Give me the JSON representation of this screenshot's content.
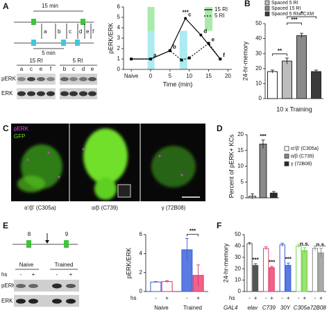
{
  "panel_labels": [
    "A",
    "B",
    "C",
    "D",
    "E",
    "F"
  ],
  "panel_a": {
    "timeline": {
      "long": "15 min",
      "short": "5 min",
      "letters": [
        "a",
        "b",
        "c",
        "d",
        "e",
        "f"
      ]
    },
    "blot": {
      "groups": [
        "15 RI",
        "5 RI"
      ],
      "lanes": [
        [
          "a",
          "c",
          "e",
          "f"
        ],
        [
          "b",
          "c",
          "d",
          "e"
        ]
      ],
      "rows": [
        "pERK",
        "ERK"
      ]
    }
  },
  "panel_c": {
    "channels": [
      "pERK",
      "GFP"
    ],
    "captions": [
      "α'/β' (C305a)",
      "α/β (C739)",
      "γ (72B08)"
    ]
  },
  "panel_e": {
    "timeline": [
      "8",
      "9"
    ],
    "blot": {
      "groups": [
        "Naive",
        "Trained"
      ],
      "hs": "hs",
      "signs": [
        "-",
        "+",
        "-",
        "+"
      ],
      "rows": [
        "pERK",
        "ERK"
      ]
    }
  },
  "chart_data": [
    {
      "type": "line",
      "y_label": "pERK/ERK",
      "x_label": "Time (min)",
      "xlim": [
        -7,
        21
      ],
      "xticks": [
        {
          "value": -5,
          "label": "Naive"
        },
        0,
        5,
        10,
        15,
        20
      ],
      "ylim": [
        0,
        6
      ],
      "yticks": [
        0,
        1,
        2,
        3,
        4,
        5,
        6
      ],
      "bands": [
        {
          "from": -0.8,
          "to": 1,
          "low": 3.7,
          "high": 6,
          "color": "#9be89b"
        },
        {
          "from": -0.8,
          "to": 1,
          "low": 0,
          "high": 3.7,
          "color": "#9fe6ee"
        },
        {
          "from": 7.5,
          "to": 9.5,
          "low": 0,
          "high": 3.7,
          "color": "#9fe6ee"
        },
        {
          "from": 14,
          "to": 16,
          "low": 3.7,
          "high": 6,
          "color": "#9be89b"
        }
      ],
      "peak_label": "***",
      "series": [
        {
          "name": "15 RI",
          "color": "#000000",
          "style": "solid",
          "x": [
            -5,
            0,
            5,
            9,
            13,
            18
          ],
          "values": [
            1,
            1,
            1.8,
            4.9,
            3.3,
            1
          ],
          "labels": [
            null,
            "a",
            null,
            "c",
            "d",
            "f"
          ]
        },
        {
          "name": "5 RI",
          "color": "#000000",
          "style": "dotted",
          "x": [
            -5,
            0,
            5,
            8,
            10,
            15,
            18
          ],
          "values": [
            1,
            1,
            1.8,
            0.9,
            1.1,
            2.5,
            1
          ],
          "labels": [
            null,
            null,
            "b",
            null,
            null,
            "e",
            null
          ]
        }
      ]
    },
    {
      "type": "bar",
      "y_label": "24-hr-memory",
      "x_label": "10 x Training",
      "ylim": [
        0,
        50
      ],
      "yticks": [
        0,
        10,
        20,
        30,
        40,
        50
      ],
      "legend": [
        {
          "name": "Spaced 5 RI",
          "color": "#bdbdbd"
        },
        {
          "name": "Spaced 15 RI",
          "color": "#8a8a8a"
        },
        {
          "name": "Spaced 5 RIw/CXM",
          "color": "#3a3a3a"
        }
      ],
      "series": [
        {
          "values": [
            18,
            25,
            42,
            18
          ],
          "errors": [
            1,
            2,
            1.5,
            1
          ],
          "fills": [
            "#ffffff",
            "#bdbdbd",
            "#8a8a8a",
            "#3a3a3a"
          ],
          "strokes": [
            "#222222",
            "#222222",
            "#222222",
            "#222222"
          ]
        }
      ],
      "brackets": [
        {
          "from": 0,
          "to": 1,
          "label": "**"
        },
        {
          "from": 1,
          "to": 2,
          "label": "***"
        },
        {
          "from": 1,
          "to": 3,
          "label": "*"
        }
      ]
    },
    {
      "type": "bar",
      "y_label": "Percent of pERK+ KCs",
      "ylim": [
        0,
        20
      ],
      "yticks": [
        0,
        5,
        10,
        15,
        20
      ],
      "legend": [
        {
          "name": "α'/β' (C305a)",
          "color": "#ffffff"
        },
        {
          "name": "α/β (C739)",
          "color": "#8a8a8a"
        },
        {
          "name": "γ (72B08)",
          "color": "#2a2a2a"
        }
      ],
      "series": [
        {
          "values": [
            0.5,
            17,
            1.5
          ],
          "errors": [
            0.8,
            1.3,
            0.5
          ],
          "fills": [
            "#ffffff",
            "#8a8a8a",
            "#2a2a2a"
          ],
          "strokes": [
            "#222222",
            "#222222",
            "#222222"
          ],
          "labels": [
            null,
            "***",
            null
          ]
        }
      ]
    },
    {
      "type": "bar",
      "y_label": "pERK/ERK",
      "row_label": "hs",
      "ylim": [
        0,
        6
      ],
      "yticks": [
        0,
        2,
        4,
        6
      ],
      "categories": [
        "Naive",
        "Trained"
      ],
      "series": [
        {
          "name": "-",
          "values": [
            1,
            4.4
          ],
          "errors": [
            0.05,
            1.2
          ],
          "fills": [
            "#ffffff",
            "#5a7be2"
          ],
          "strokes": [
            "#3a5bd6",
            "#3a5bd6"
          ]
        },
        {
          "name": "+",
          "values": [
            1.05,
            1.7
          ],
          "errors": [
            0.1,
            1.1
          ],
          "fills": [
            "#ffffff",
            "#f0628a"
          ],
          "strokes": [
            "#e03060",
            "#e03060"
          ]
        }
      ],
      "brackets": [
        {
          "from": 2,
          "to": 3,
          "label": "***"
        }
      ]
    },
    {
      "type": "bar",
      "y_label": "24-hr-memory",
      "row_label": "hs",
      "group_label": "GAL4",
      "ylim": [
        0,
        50
      ],
      "yticks": [
        0,
        10,
        20,
        30,
        40,
        50
      ],
      "categories": [
        "elav",
        "C739",
        "30Y",
        "C305a",
        "72B08"
      ],
      "series": [
        {
          "name": "-",
          "values": [
            42,
            38,
            41,
            40,
            38
          ],
          "errors": [
            1,
            1.5,
            1.5,
            1.5,
            2
          ],
          "fills": [
            "#ffffff",
            "#ffffff",
            "#ffffff",
            "#ffffff",
            "#ffffff"
          ],
          "strokes": [
            "#555555",
            "#e0406a",
            "#3a5bd6",
            "#6fd04a",
            "#888888"
          ]
        },
        {
          "name": "+",
          "values": [
            23,
            21,
            23,
            36,
            34
          ],
          "errors": [
            1.5,
            1.2,
            2,
            2.5,
            4
          ],
          "fills": [
            "#555555",
            "#f0628a",
            "#5a7be2",
            "#9be36e",
            "#aaaaaa"
          ],
          "strokes": [
            "#555555",
            "#e0406a",
            "#3a5bd6",
            "#6fd04a",
            "#888888"
          ],
          "labels": [
            "***",
            "***",
            "***",
            "n.s.",
            "n.s."
          ]
        }
      ]
    }
  ]
}
